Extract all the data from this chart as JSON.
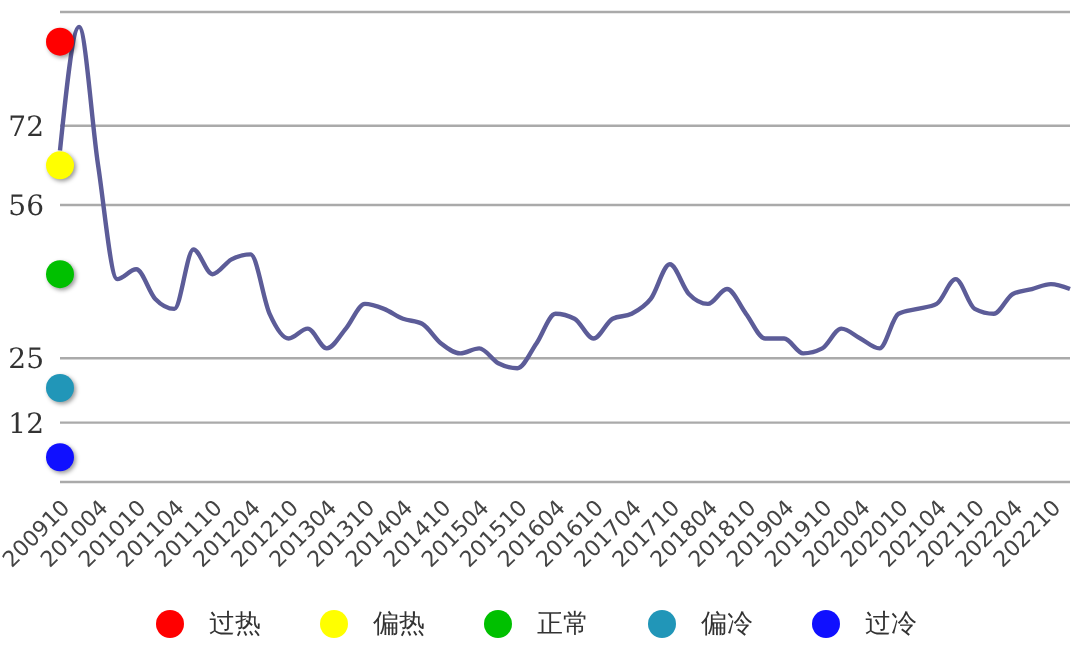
{
  "chart_data": {
    "type": "line",
    "categories": [
      "200910",
      null,
      "201004",
      null,
      "201010",
      null,
      "201104",
      null,
      "201110",
      null,
      "201204",
      null,
      "201210",
      null,
      "201304",
      null,
      "201310",
      null,
      "201404",
      null,
      "201410",
      null,
      "201504",
      null,
      "201510",
      null,
      "201604",
      null,
      "201610",
      null,
      "201704",
      null,
      "201710",
      null,
      "201804",
      null,
      "201810",
      null,
      "201904",
      null,
      "201910",
      null,
      "202004",
      null,
      "202010",
      null,
      "202104",
      null,
      "202110",
      null,
      "202204",
      null,
      "202210",
      null
    ],
    "series": [
      {
        "color": "#5c5c98",
        "marker": "none",
        "values": [
          67,
          92,
          64,
          41,
          43,
          37,
          35,
          47,
          42,
          45,
          46,
          34,
          29,
          31,
          27,
          31,
          36,
          35,
          33,
          32,
          28,
          26,
          27,
          24,
          23,
          28,
          34,
          33,
          29,
          33,
          34,
          37,
          44,
          38,
          36,
          39,
          34,
          29,
          29,
          26,
          27,
          31,
          29,
          27,
          34,
          35,
          36,
          41,
          35,
          34,
          38,
          39,
          40,
          39
        ]
      },
      {
        "type": "scatter",
        "name": "过热",
        "color": "#ff0000",
        "x": [
          "200910"
        ],
        "values": [
          89
        ]
      },
      {
        "type": "scatter",
        "name": "偏热",
        "color": "#ffff00",
        "x": [
          "200910"
        ],
        "values": [
          64
        ]
      },
      {
        "type": "scatter",
        "name": "正常",
        "color": "#00c000",
        "x": [
          "200910"
        ],
        "values": [
          42
        ]
      },
      {
        "type": "scatter",
        "name": "偏冷",
        "color": "#2196b8",
        "x": [
          "200910"
        ],
        "values": [
          19
        ]
      },
      {
        "type": "scatter",
        "name": "过冷",
        "color": "#1010ff",
        "x": [
          "200910"
        ],
        "values": [
          5
        ]
      }
    ],
    "ylim": [
      0,
      95
    ],
    "yticks": [
      {
        "value": 0,
        "label": null
      },
      12,
      25,
      56,
      72
    ],
    "grid": "y",
    "legend": "bottom",
    "marker": "circle",
    "line_style": "solid"
  }
}
